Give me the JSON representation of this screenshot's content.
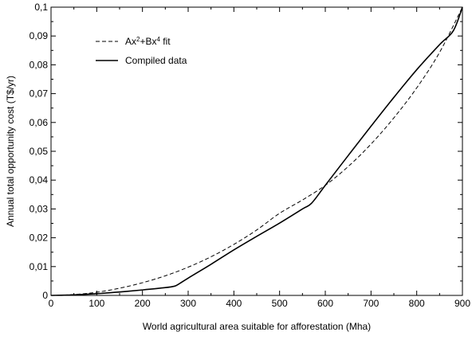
{
  "chart_data": {
    "type": "line",
    "xlabel": "World agricultural area suitable for afforestation (Mha)",
    "ylabel": "Annual total opportunity cost (T$/yr)",
    "xlim": [
      0,
      900
    ],
    "ylim": [
      0,
      0.1
    ],
    "x_ticks": [
      0,
      100,
      200,
      300,
      400,
      500,
      600,
      700,
      800,
      900
    ],
    "x_tick_labels": [
      "0",
      "100",
      "200",
      "300",
      "400",
      "500",
      "600",
      "700",
      "800",
      "900"
    ],
    "y_ticks": [
      0,
      0.01,
      0.02,
      0.03,
      0.04,
      0.05,
      0.06,
      0.07,
      0.08,
      0.09,
      0.1
    ],
    "y_tick_labels": [
      "0",
      "0,01",
      "0,02",
      "0,03",
      "0,04",
      "0,05",
      "0,06",
      "0,07",
      "0,08",
      "0,09",
      "0,1"
    ],
    "grid": false,
    "legend_position": "top-left",
    "legend": [
      {
        "label_parts": [
          "Ax",
          "2",
          "+Bx",
          "4",
          " fit"
        ],
        "style": "dashed"
      },
      {
        "label_parts": [
          "Compiled data"
        ],
        "style": "solid"
      }
    ],
    "series": [
      {
        "style": "dashed",
        "x": [
          0,
          50,
          100,
          150,
          200,
          250,
          300,
          350,
          400,
          450,
          500,
          550,
          600,
          650,
          700,
          750,
          800,
          850,
          900
        ],
        "y": [
          0,
          0.0003,
          0.0011,
          0.0025,
          0.0044,
          0.0068,
          0.0098,
          0.0134,
          0.0177,
          0.0227,
          0.0285,
          0.0331,
          0.0382,
          0.0447,
          0.0525,
          0.0616,
          0.072,
          0.0843,
          0.1
        ]
      },
      {
        "style": "solid",
        "x": [
          0,
          50,
          100,
          150,
          200,
          250,
          270,
          280,
          300,
          350,
          400,
          450,
          500,
          550,
          570,
          600,
          650,
          700,
          750,
          800,
          850,
          880,
          900
        ],
        "y": [
          0,
          0.0002,
          0.0006,
          0.0012,
          0.0019,
          0.0027,
          0.0032,
          0.004,
          0.006,
          0.0108,
          0.0158,
          0.0205,
          0.0251,
          0.03,
          0.032,
          0.0382,
          0.0485,
          0.0587,
          0.0687,
          0.0783,
          0.087,
          0.0918,
          0.1
        ]
      }
    ]
  }
}
